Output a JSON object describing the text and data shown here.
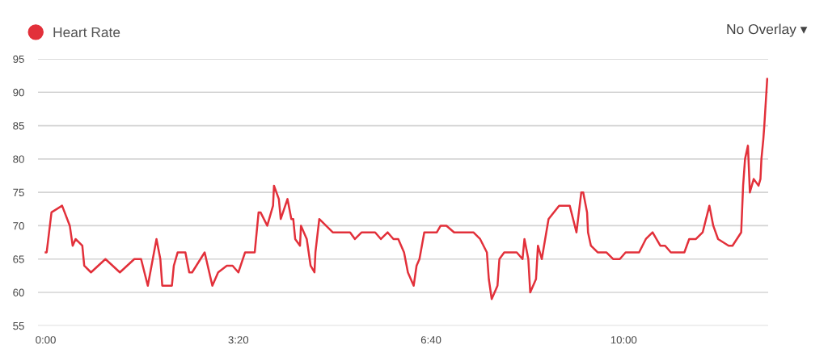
{
  "chart_data": {
    "type": "line",
    "x": [
      0,
      1,
      6,
      17,
      25,
      28,
      31,
      38,
      40,
      47,
      62,
      77,
      92,
      99,
      106,
      115,
      119,
      121,
      131,
      133,
      137,
      145,
      149,
      152,
      165,
      173,
      179,
      188,
      194,
      200,
      207,
      217,
      221,
      223,
      230,
      236,
      237,
      242,
      244,
      251,
      255,
      257,
      259,
      264,
      265,
      271,
      275,
      279,
      280,
      284,
      298,
      316,
      321,
      328,
      342,
      348,
      355,
      361,
      366,
      372,
      376,
      382,
      385,
      388,
      393,
      406,
      410,
      416,
      424,
      444,
      451,
      458,
      460,
      463,
      469,
      471,
      476,
      489,
      495,
      497,
      501,
      503,
      509,
      511,
      515,
      522,
      533,
      544,
      551,
      556,
      558,
      562,
      563,
      566,
      573,
      582,
      589,
      596,
      602,
      616,
      623,
      630,
      638,
      643,
      649,
      663,
      668,
      675,
      682,
      689,
      693,
      698,
      709,
      713,
      722,
      724,
      726,
      729,
      731,
      733,
      735,
      740,
      742,
      743,
      745,
      746,
      749
    ],
    "series": [
      {
        "name": "Heart Rate",
        "color": "#e2303a",
        "values": [
          66,
          66,
          72,
          73,
          70,
          67,
          68,
          67,
          64,
          63,
          65,
          63,
          65,
          65,
          61,
          68,
          65,
          61,
          61,
          64,
          66,
          66,
          63,
          63,
          66,
          61,
          63,
          64,
          64,
          63,
          66,
          66,
          72,
          72,
          70,
          73,
          76,
          74,
          71,
          74,
          71,
          71,
          68,
          67,
          70,
          68,
          64,
          63,
          66,
          71,
          69,
          69,
          68,
          69,
          69,
          68,
          69,
          68,
          68,
          66,
          63,
          61,
          64,
          65,
          69,
          69,
          70,
          70,
          69,
          69,
          68,
          66,
          62,
          59,
          61,
          65,
          66,
          66,
          65,
          68,
          65,
          60,
          62,
          67,
          65,
          71,
          73,
          73,
          69,
          75,
          75,
          72,
          69,
          67,
          66,
          66,
          65,
          65,
          66,
          66,
          68,
          69,
          67,
          67,
          66,
          66,
          68,
          68,
          69,
          73,
          70,
          68,
          67,
          67,
          69,
          76,
          80,
          82,
          75,
          76,
          77,
          76,
          77,
          80,
          83,
          85,
          92
        ]
      }
    ],
    "xlim": [
      -8,
      750
    ],
    "xticks": [
      {
        "value": 0,
        "label": "0:00"
      },
      {
        "value": 200,
        "label": "3:20"
      },
      {
        "value": 400,
        "label": "6:40"
      },
      {
        "value": 600,
        "label": "10:00"
      }
    ],
    "ylim": [
      55,
      95
    ],
    "yticks": [
      55,
      60,
      65,
      70,
      75,
      80,
      85,
      90,
      95
    ],
    "grid": "y",
    "legend": "top left",
    "marker": "none",
    "line_style": "solid",
    "annotations": [
      "No Overlay ▾"
    ]
  }
}
